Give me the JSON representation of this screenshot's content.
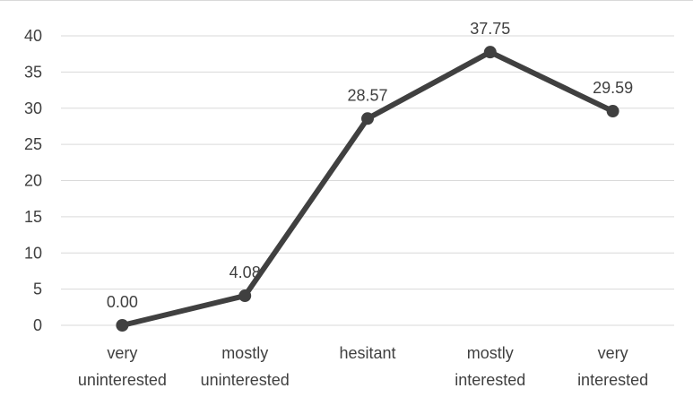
{
  "chart_data": {
    "type": "line",
    "categories": [
      [
        "very",
        "uninterested"
      ],
      [
        "mostly",
        "uninterested"
      ],
      [
        "hesitant"
      ],
      [
        "mostly",
        "interested"
      ],
      [
        "very",
        "interested"
      ]
    ],
    "series": [
      {
        "values": [
          0.0,
          4.08,
          28.57,
          37.75,
          29.59
        ],
        "labels": [
          "0.00",
          "4.08",
          "28.57",
          "37.75",
          "29.59"
        ],
        "color": "#404040"
      }
    ],
    "yticks": [
      "0",
      "5",
      "10",
      "15",
      "20",
      "25",
      "30",
      "35",
      "40"
    ],
    "ylim": [
      0,
      40
    ],
    "grid": true,
    "title": "",
    "xlabel": "",
    "ylabel": ""
  }
}
